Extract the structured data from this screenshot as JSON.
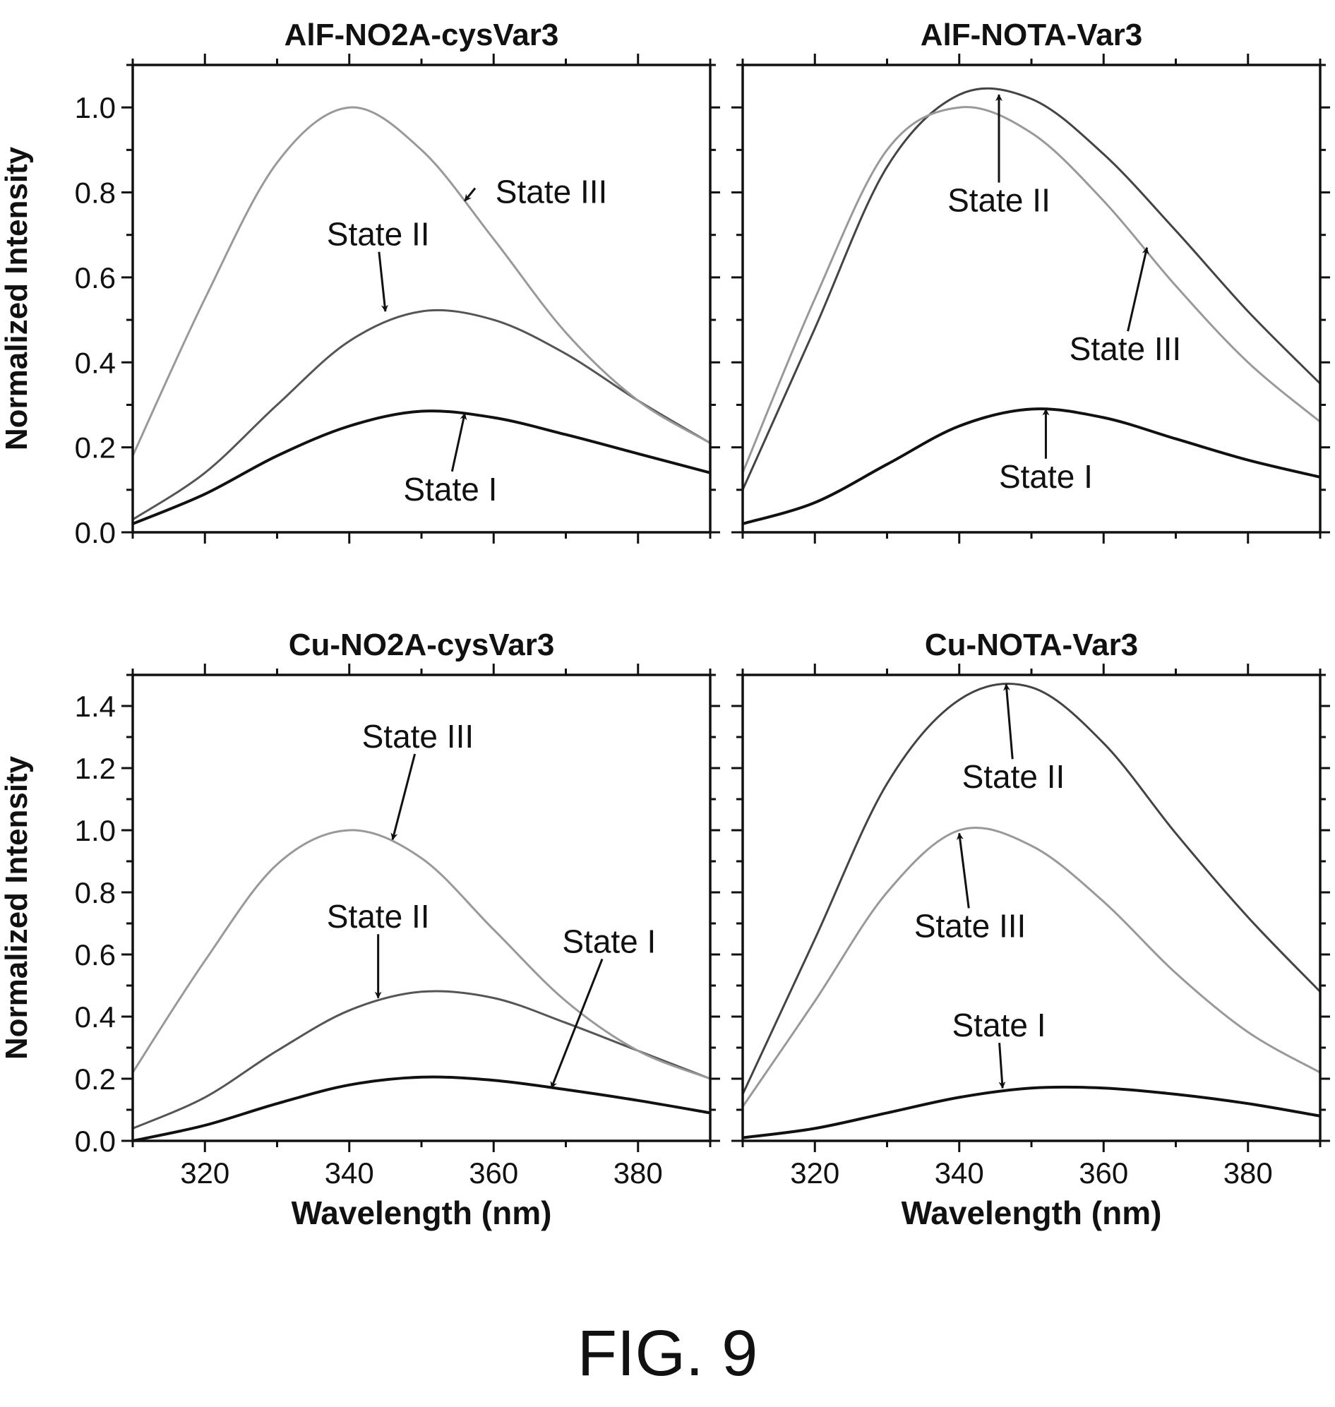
{
  "figure_label": "FIG. 9",
  "chart_data": [
    {
      "type": "line",
      "title": "AlF-NO2A-cysVar3",
      "xlabel": "",
      "ylabel": "Normalized Intensity",
      "xlim": [
        310,
        390
      ],
      "ylim": [
        0,
        1.1
      ],
      "xticks": [
        320,
        340,
        360,
        380
      ],
      "yticks": [
        0.0,
        0.2,
        0.4,
        0.6,
        0.8,
        1.0
      ],
      "show_xtick_labels": false,
      "series": [
        {
          "name": "State I",
          "color": "#111111",
          "x": [
            310,
            320,
            330,
            340,
            350,
            360,
            370,
            380,
            390
          ],
          "y": [
            0.02,
            0.09,
            0.18,
            0.25,
            0.285,
            0.27,
            0.23,
            0.185,
            0.14
          ]
        },
        {
          "name": "State II",
          "color": "#555555",
          "x": [
            310,
            320,
            330,
            340,
            350,
            360,
            370,
            380,
            390
          ],
          "y": [
            0.03,
            0.14,
            0.3,
            0.45,
            0.52,
            0.5,
            0.42,
            0.31,
            0.21
          ]
        },
        {
          "name": "State III",
          "color": "#999999",
          "x": [
            310,
            320,
            330,
            340,
            350,
            360,
            370,
            380,
            390
          ],
          "y": [
            0.18,
            0.55,
            0.87,
            1.0,
            0.9,
            0.69,
            0.47,
            0.31,
            0.21
          ]
        }
      ],
      "annotations": [
        {
          "text": "State III",
          "text_x": 368,
          "text_y": 0.8,
          "arrow_x": 356,
          "arrow_y": 0.78
        },
        {
          "text": "State II",
          "text_x": 344,
          "text_y": 0.7,
          "arrow_x": 345,
          "arrow_y": 0.52
        },
        {
          "text": "State I",
          "text_x": 354,
          "text_y": 0.1,
          "arrow_x": 356,
          "arrow_y": 0.28
        }
      ]
    },
    {
      "type": "line",
      "title": "AlF-NOTA-Var3",
      "xlabel": "",
      "ylabel": "",
      "xlim": [
        310,
        390
      ],
      "ylim": [
        0,
        1.1
      ],
      "xticks": [
        320,
        340,
        360,
        380
      ],
      "yticks": [
        0.0,
        0.2,
        0.4,
        0.6,
        0.8,
        1.0
      ],
      "show_xtick_labels": false,
      "show_ytick_labels": false,
      "series": [
        {
          "name": "State I",
          "color": "#111111",
          "x": [
            310,
            320,
            330,
            340,
            350,
            360,
            370,
            380,
            390
          ],
          "y": [
            0.02,
            0.07,
            0.16,
            0.25,
            0.29,
            0.27,
            0.22,
            0.17,
            0.13
          ]
        },
        {
          "name": "State II",
          "color": "#444444",
          "x": [
            310,
            320,
            330,
            340,
            350,
            360,
            370,
            380,
            390
          ],
          "y": [
            0.1,
            0.48,
            0.86,
            1.03,
            1.02,
            0.89,
            0.71,
            0.52,
            0.35
          ]
        },
        {
          "name": "State III",
          "color": "#999999",
          "x": [
            310,
            320,
            330,
            340,
            350,
            360,
            370,
            380,
            390
          ],
          "y": [
            0.14,
            0.55,
            0.9,
            1.0,
            0.94,
            0.78,
            0.58,
            0.4,
            0.26
          ]
        }
      ],
      "annotations": [
        {
          "text": "State II",
          "text_x": 345.5,
          "text_y": 0.78,
          "arrow_x": 345.5,
          "arrow_y": 1.03
        },
        {
          "text": "State III",
          "text_x": 363,
          "text_y": 0.43,
          "arrow_x": 366,
          "arrow_y": 0.67
        },
        {
          "text": "State I",
          "text_x": 352,
          "text_y": 0.13,
          "arrow_x": 352,
          "arrow_y": 0.29
        }
      ]
    },
    {
      "type": "line",
      "title": "Cu-NO2A-cysVar3",
      "xlabel": "Wavelength (nm)",
      "ylabel": "Normalized Intensity",
      "xlim": [
        310,
        390
      ],
      "ylim": [
        0,
        1.5
      ],
      "xticks": [
        320,
        340,
        360,
        380
      ],
      "yticks": [
        0.0,
        0.2,
        0.4,
        0.6,
        0.8,
        1.0,
        1.2,
        1.4
      ],
      "show_xtick_labels": true,
      "series": [
        {
          "name": "State I",
          "color": "#111111",
          "x": [
            310,
            320,
            330,
            340,
            350,
            360,
            370,
            380,
            390
          ],
          "y": [
            0.0,
            0.05,
            0.12,
            0.18,
            0.205,
            0.195,
            0.165,
            0.13,
            0.09
          ]
        },
        {
          "name": "State II",
          "color": "#555555",
          "x": [
            310,
            320,
            330,
            340,
            350,
            360,
            370,
            380,
            390
          ],
          "y": [
            0.04,
            0.14,
            0.29,
            0.42,
            0.48,
            0.46,
            0.38,
            0.29,
            0.2
          ]
        },
        {
          "name": "State III",
          "color": "#999999",
          "x": [
            310,
            320,
            330,
            340,
            350,
            360,
            370,
            380,
            390
          ],
          "y": [
            0.22,
            0.58,
            0.89,
            1.0,
            0.91,
            0.68,
            0.45,
            0.29,
            0.2
          ]
        }
      ],
      "annotations": [
        {
          "text": "State III",
          "text_x": 349.5,
          "text_y": 1.3,
          "arrow_x": 346,
          "arrow_y": 0.97
        },
        {
          "text": "State II",
          "text_x": 344,
          "text_y": 0.72,
          "arrow_x": 344,
          "arrow_y": 0.46
        },
        {
          "text": "State I",
          "text_x": 376,
          "text_y": 0.64,
          "arrow_x": 368,
          "arrow_y": 0.17
        }
      ]
    },
    {
      "type": "line",
      "title": "Cu-NOTA-Var3",
      "xlabel": "Wavelength (nm)",
      "ylabel": "",
      "xlim": [
        310,
        390
      ],
      "ylim": [
        0,
        1.5
      ],
      "xticks": [
        320,
        340,
        360,
        380
      ],
      "yticks": [
        0.0,
        0.2,
        0.4,
        0.6,
        0.8,
        1.0,
        1.2,
        1.4
      ],
      "show_xtick_labels": true,
      "show_ytick_labels": false,
      "series": [
        {
          "name": "State I",
          "color": "#111111",
          "x": [
            310,
            320,
            330,
            340,
            350,
            360,
            370,
            380,
            390
          ],
          "y": [
            0.01,
            0.04,
            0.09,
            0.14,
            0.17,
            0.17,
            0.15,
            0.12,
            0.08
          ]
        },
        {
          "name": "State II",
          "color": "#444444",
          "x": [
            310,
            320,
            330,
            340,
            350,
            360,
            370,
            380,
            390
          ],
          "y": [
            0.15,
            0.65,
            1.15,
            1.42,
            1.46,
            1.28,
            0.99,
            0.72,
            0.48
          ]
        },
        {
          "name": "State III",
          "color": "#999999",
          "x": [
            310,
            320,
            330,
            340,
            350,
            360,
            370,
            380,
            390
          ],
          "y": [
            0.11,
            0.45,
            0.8,
            1.0,
            0.95,
            0.77,
            0.54,
            0.35,
            0.22
          ]
        }
      ],
      "annotations": [
        {
          "text": "State II",
          "text_x": 347.5,
          "text_y": 1.17,
          "arrow_x": 346.5,
          "arrow_y": 1.47
        },
        {
          "text": "State III",
          "text_x": 341.5,
          "text_y": 0.69,
          "arrow_x": 340,
          "arrow_y": 0.99
        },
        {
          "text": "State I",
          "text_x": 345.5,
          "text_y": 0.37,
          "arrow_x": 346,
          "arrow_y": 0.17
        }
      ]
    }
  ]
}
